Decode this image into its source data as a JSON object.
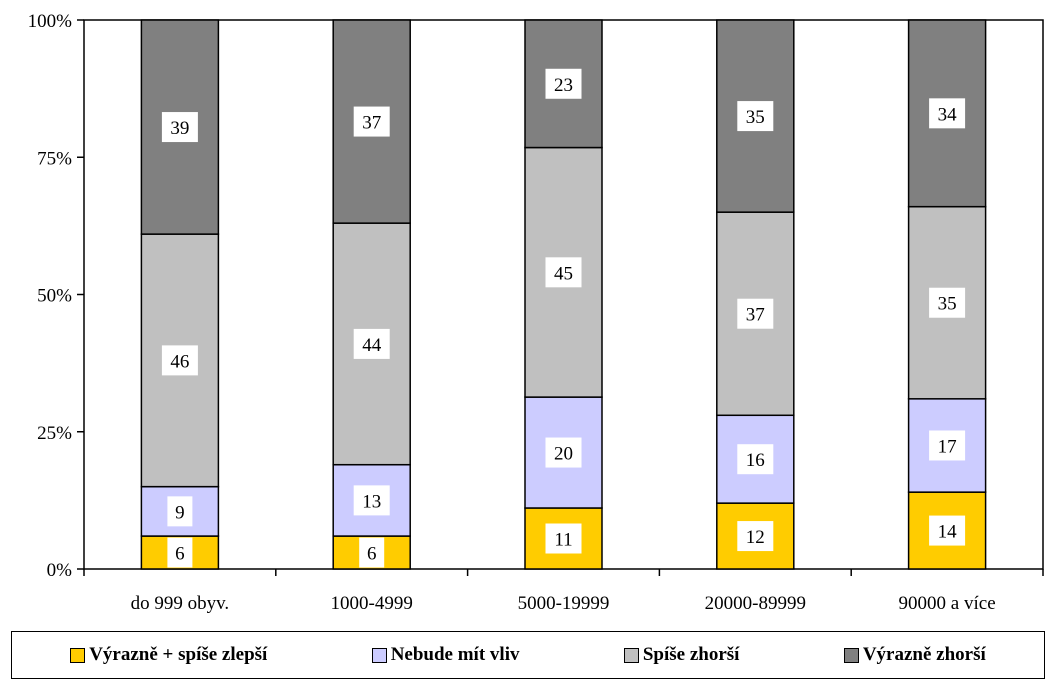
{
  "chart_data": {
    "type": "stacked-bar-100",
    "categories": [
      "do 999 obyv.",
      "1000-4999",
      "5000-19999",
      "20000-89999",
      "90000 a více"
    ],
    "series": [
      {
        "name": "Výrazně + spíše zlepší",
        "color": "#ffcc00",
        "values": [
          6,
          6,
          11,
          12,
          14
        ]
      },
      {
        "name": "Nebude mít vliv",
        "color": "#ccccff",
        "values": [
          9,
          13,
          20,
          16,
          17
        ]
      },
      {
        "name": "Spíše zhorší",
        "color": "#c0c0c0",
        "values": [
          46,
          44,
          45,
          37,
          35
        ]
      },
      {
        "name": "Výrazně zhorší",
        "color": "#808080",
        "values": [
          39,
          37,
          23,
          35,
          34
        ]
      }
    ],
    "y_ticks": [
      "0%",
      "25%",
      "50%",
      "75%",
      "100%"
    ],
    "ylim": [
      0,
      100
    ],
    "legend_position": "bottom",
    "grid": false
  }
}
